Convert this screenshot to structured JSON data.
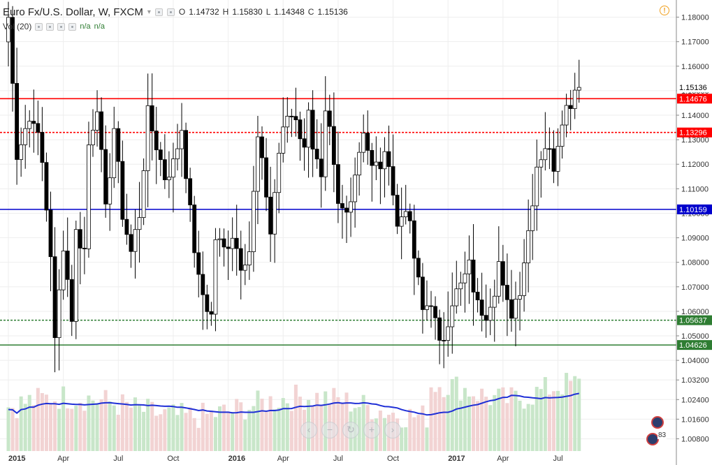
{
  "header": {
    "symbol_title": "Euro Fx/U.S. Dollar, W, FXCM",
    "ohlc": [
      {
        "label": "O",
        "value": "1.14732"
      },
      {
        "label": "H",
        "value": "1.15830"
      },
      {
        "label": "L",
        "value": "1.14348"
      },
      {
        "label": "C",
        "value": "1.15136"
      }
    ],
    "volume_title": "Vol (20)",
    "volume_values": [
      "n/a",
      "n/a"
    ]
  },
  "nav_buttons": [
    {
      "name": "scroll-left-button",
      "icon": "‹"
    },
    {
      "name": "zoom-out-button",
      "icon": "−"
    },
    {
      "name": "reset-button",
      "icon": "↻"
    },
    {
      "name": "zoom-in-button",
      "icon": "+"
    },
    {
      "name": "scroll-right-button",
      "icon": "›"
    }
  ],
  "event_badge_count": "83",
  "colors": {
    "up_body": "#ffffff",
    "down_body": "#000000",
    "wick": "#000000",
    "red_line": "#ff0000",
    "blue_line": "#0000cc",
    "green_line": "#2e7d32",
    "vol_up": "#c8e6c9",
    "vol_down": "#f2d3d3",
    "ma_line": "#1f2fd6",
    "grid": "#eeeeee",
    "price_badge_bg": "#ffffff"
  },
  "chart_data": {
    "type": "candlestick",
    "timeframe": "weekly",
    "x_tick_labels": [
      "2015",
      "Apr",
      "Jul",
      "Oct",
      "2016",
      "Apr",
      "Jul",
      "Oct",
      "2017",
      "Apr",
      "Jul"
    ],
    "x_tick_weeks": [
      0,
      13,
      26,
      39,
      52,
      65,
      78,
      91,
      104,
      117,
      130
    ],
    "y_tick_labels": [
      "1.18000",
      "1.17000",
      "1.16000",
      "1.15000",
      "1.14000",
      "1.13000",
      "1.12000",
      "1.11000",
      "1.10000",
      "1.09000",
      "1.08000",
      "1.07000",
      "1.06000",
      "1.05000",
      "1.04000",
      "1.03200",
      "1.02400",
      "1.01600",
      "1.00800"
    ],
    "price_axis": {
      "min": 1.003,
      "max": 1.187
    },
    "current_price": {
      "label": "1.15136",
      "value": 1.15136
    },
    "horizontal_levels": [
      {
        "label": "1.14676",
        "value": 1.14676,
        "color": "#ff0000",
        "style": "solid"
      },
      {
        "label": "1.13296",
        "value": 1.13296,
        "color": "#ff0000",
        "style": "dashed"
      },
      {
        "label": "1.10159",
        "value": 1.10159,
        "color": "#0000cc",
        "style": "solid"
      },
      {
        "label": "1.05637",
        "value": 1.05637,
        "color": "#2e7d32",
        "style": "dashed"
      },
      {
        "label": "1.04626",
        "value": 1.04626,
        "color": "#2e7d32",
        "style": "solid"
      }
    ],
    "close_anchors": [
      [
        0,
        1.18
      ],
      [
        2,
        1.125
      ],
      [
        4,
        1.135
      ],
      [
        6,
        1.14
      ],
      [
        8,
        1.12
      ],
      [
        10,
        1.084
      ],
      [
        11,
        1.047
      ],
      [
        13,
        1.088
      ],
      [
        15,
        1.058
      ],
      [
        16,
        1.092
      ],
      [
        18,
        1.085
      ],
      [
        19,
        1.128
      ],
      [
        21,
        1.145
      ],
      [
        23,
        1.1
      ],
      [
        25,
        1.135
      ],
      [
        27,
        1.1
      ],
      [
        29,
        1.084
      ],
      [
        31,
        1.1
      ],
      [
        33,
        1.14
      ],
      [
        35,
        1.128
      ],
      [
        37,
        1.115
      ],
      [
        39,
        1.12
      ],
      [
        41,
        1.135
      ],
      [
        43,
        1.1
      ],
      [
        45,
        1.072
      ],
      [
        47,
        1.062
      ],
      [
        48,
        1.058
      ],
      [
        49,
        1.09
      ],
      [
        51,
        1.085
      ],
      [
        53,
        1.092
      ],
      [
        55,
        1.08
      ],
      [
        57,
        1.085
      ],
      [
        59,
        1.13
      ],
      [
        61,
        1.108
      ],
      [
        62,
        1.092
      ],
      [
        64,
        1.125
      ],
      [
        66,
        1.14
      ],
      [
        68,
        1.14
      ],
      [
        70,
        1.125
      ],
      [
        71,
        1.145
      ],
      [
        72,
        1.128
      ],
      [
        74,
        1.112
      ],
      [
        75,
        1.138
      ],
      [
        76,
        1.132
      ],
      [
        78,
        1.102
      ],
      [
        80,
        1.1
      ],
      [
        82,
        1.117
      ],
      [
        84,
        1.135
      ],
      [
        86,
        1.118
      ],
      [
        88,
        1.12
      ],
      [
        90,
        1.123
      ],
      [
        92,
        1.094
      ],
      [
        94,
        1.104
      ],
      [
        96,
        1.082
      ],
      [
        98,
        1.06
      ],
      [
        100,
        1.065
      ],
      [
        102,
        1.045
      ],
      [
        103,
        1.05
      ],
      [
        105,
        1.065
      ],
      [
        107,
        1.07
      ],
      [
        109,
        1.078
      ],
      [
        111,
        1.062
      ],
      [
        113,
        1.06
      ],
      [
        115,
        1.07
      ],
      [
        116,
        1.08
      ],
      [
        117,
        1.068
      ],
      [
        118,
        1.062
      ],
      [
        119,
        1.06
      ],
      [
        121,
        1.07
      ],
      [
        123,
        1.093
      ],
      [
        125,
        1.12
      ],
      [
        127,
        1.128
      ],
      [
        129,
        1.12
      ],
      [
        131,
        1.14
      ],
      [
        133,
        1.146
      ],
      [
        134,
        1.151
      ]
    ],
    "volume_moving_average": {
      "period": 20
    },
    "volume_axis_max_label": ""
  }
}
